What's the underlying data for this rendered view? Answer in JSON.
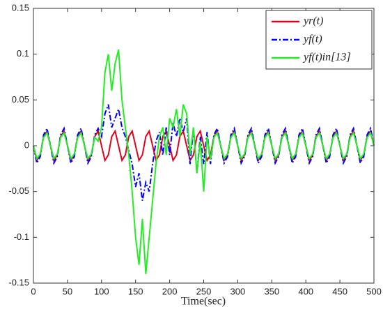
{
  "chart_data": {
    "type": "line",
    "xlabel": "Time(sec)",
    "xlim": [
      0,
      500
    ],
    "xticks": [
      0,
      50,
      100,
      150,
      200,
      250,
      300,
      350,
      400,
      450,
      500
    ],
    "ylim": [
      -0.15,
      0.15
    ],
    "yticks": [
      -0.15,
      -0.1,
      -0.05,
      0,
      0.05,
      0.1,
      0.15
    ],
    "legend": "upper right",
    "x": [
      0,
      5,
      10,
      15,
      20,
      25,
      30,
      35,
      40,
      45,
      50,
      55,
      60,
      65,
      70,
      75,
      80,
      85,
      90,
      95,
      100,
      105,
      110,
      115,
      120,
      125,
      130,
      135,
      140,
      145,
      150,
      155,
      160,
      165,
      170,
      175,
      180,
      185,
      190,
      195,
      200,
      205,
      210,
      215,
      220,
      225,
      230,
      235,
      240,
      245,
      250,
      255,
      260,
      265,
      270,
      275,
      280,
      285,
      290,
      295,
      300,
      305,
      310,
      315,
      320,
      325,
      330,
      335,
      340,
      345,
      350,
      355,
      360,
      365,
      370,
      375,
      380,
      385,
      390,
      395,
      400,
      405,
      410,
      415,
      420,
      425,
      430,
      435,
      440,
      445,
      450,
      455,
      460,
      465,
      470,
      475,
      480,
      485,
      490,
      495,
      500
    ],
    "series": [
      {
        "name": "yr(t)",
        "color": "#e3001b",
        "linestyle": "solid",
        "values": [
          0,
          -0.016,
          -0.01,
          0.01,
          0.016,
          0,
          -0.016,
          -0.01,
          0.01,
          0.016,
          0,
          -0.016,
          -0.01,
          0.01,
          0.016,
          0,
          -0.016,
          -0.01,
          0.01,
          0.016,
          0,
          -0.016,
          -0.01,
          0.01,
          0.016,
          0,
          -0.016,
          -0.01,
          0.01,
          0.016,
          0,
          -0.016,
          -0.01,
          0.01,
          0.016,
          0,
          -0.016,
          -0.01,
          0.01,
          0.016,
          0,
          -0.016,
          -0.01,
          0.01,
          0.016,
          0,
          -0.016,
          -0.01,
          0.01,
          0.016,
          0,
          -0.016,
          -0.01,
          0.01,
          0.016,
          0,
          -0.016,
          -0.01,
          0.01,
          0.016,
          0,
          -0.016,
          -0.01,
          0.01,
          0.016,
          0,
          -0.016,
          -0.01,
          0.01,
          0.016,
          0,
          -0.016,
          -0.01,
          0.01,
          0.016,
          0,
          -0.016,
          -0.01,
          0.01,
          0.016,
          0,
          -0.016,
          -0.01,
          0.01,
          0.016,
          0,
          -0.016,
          -0.01,
          0.01,
          0.016,
          0,
          -0.016,
          -0.01,
          0.01,
          0.016,
          0,
          -0.016,
          -0.01,
          0.01,
          0.016,
          0
        ]
      },
      {
        "name": "yf(t)",
        "color": "#0000ff",
        "linestyle": "dashdot",
        "values": [
          0,
          -0.019,
          -0.012,
          0.012,
          0.019,
          0,
          -0.019,
          -0.012,
          0.012,
          0.019,
          0,
          -0.019,
          -0.012,
          0.012,
          0.019,
          0,
          -0.019,
          -0.012,
          0.012,
          0.019,
          0.01,
          0.035,
          0.045,
          0.02,
          0.03,
          0.04,
          0.02,
          0.01,
          -0.005,
          -0.02,
          -0.045,
          -0.03,
          -0.06,
          -0.04,
          -0.05,
          -0.02,
          0.005,
          0.015,
          -0.01,
          0.02,
          -0.01,
          0.025,
          0.01,
          0.03,
          0.015,
          0.03,
          -0.02,
          0.02,
          -0.03,
          0.01,
          -0.02,
          0.015,
          -0.02,
          0.012,
          0.019,
          0,
          -0.019,
          -0.012,
          0.012,
          0.019,
          0,
          -0.019,
          -0.012,
          0.012,
          0.019,
          0,
          -0.019,
          -0.012,
          0.012,
          0.019,
          0,
          -0.019,
          -0.012,
          0.012,
          0.019,
          0,
          -0.019,
          -0.012,
          0.012,
          0.019,
          0,
          -0.019,
          -0.012,
          0.012,
          0.019,
          0,
          -0.019,
          -0.012,
          0.012,
          0.019,
          0,
          -0.019,
          -0.012,
          0.012,
          0.019,
          0,
          -0.019,
          -0.012,
          0.012,
          0.019,
          0
        ]
      },
      {
        "name": "yf(t)in[13]",
        "color": "#22ee22",
        "linestyle": "solid",
        "values": [
          0,
          -0.014,
          -0.009,
          0.009,
          0.014,
          0,
          -0.014,
          -0.009,
          0.009,
          0.014,
          0,
          -0.014,
          -0.009,
          0.009,
          0.014,
          0,
          -0.014,
          -0.009,
          0.009,
          0.005,
          0.02,
          0.08,
          0.1,
          0.06,
          0.09,
          0.105,
          0.05,
          0.02,
          -0.01,
          -0.05,
          -0.1,
          -0.13,
          -0.08,
          -0.14,
          -0.1,
          -0.06,
          -0.02,
          0.01,
          0.02,
          -0.01,
          0.03,
          0.02,
          0.04,
          0.01,
          0.045,
          0.035,
          -0.01,
          0.02,
          -0.03,
          0.005,
          -0.05,
          0.01,
          -0.015,
          0.009,
          0.014,
          0,
          -0.014,
          -0.009,
          0.009,
          0.014,
          0,
          -0.014,
          -0.009,
          0.009,
          0.014,
          0,
          -0.014,
          -0.009,
          0.009,
          0.014,
          0,
          -0.014,
          -0.009,
          0.009,
          0.014,
          0,
          -0.014,
          -0.009,
          0.009,
          0.014,
          0,
          -0.014,
          -0.009,
          0.009,
          0.014,
          0,
          -0.014,
          -0.009,
          0.009,
          0.014,
          0,
          -0.014,
          -0.009,
          0.009,
          0.014,
          0,
          -0.014,
          -0.009,
          0.009,
          0.014,
          0
        ]
      }
    ]
  }
}
